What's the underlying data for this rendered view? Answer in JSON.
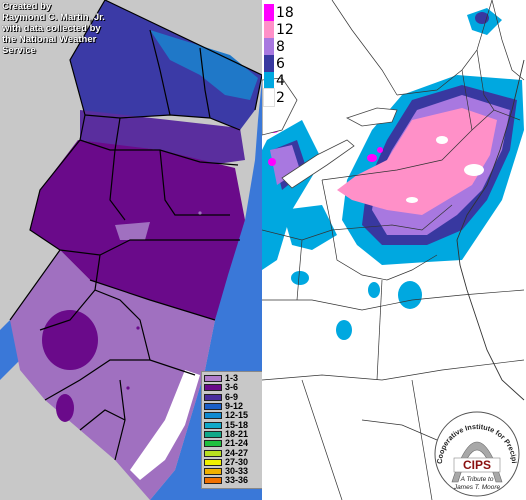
{
  "credit": {
    "line1": "Created by",
    "line2": "Raymond C. Martin, Jr.",
    "line3": "with data collected by",
    "line4": "the National Weather",
    "line5": "Service"
  },
  "nj_legend": [
    {
      "label": "1-3",
      "color": "#b07ccc"
    },
    {
      "label": "3-6",
      "color": "#6a0a8a"
    },
    {
      "label": "6-9",
      "color": "#4a2e9e"
    },
    {
      "label": "9-12",
      "color": "#1a5fc8"
    },
    {
      "label": "12-15",
      "color": "#0f8ad0"
    },
    {
      "label": "15-18",
      "color": "#10a8c8"
    },
    {
      "label": "18-21",
      "color": "#10a888"
    },
    {
      "label": "21-24",
      "color": "#20c040"
    },
    {
      "label": "24-27",
      "color": "#b8e020"
    },
    {
      "label": "27-30",
      "color": "#f0f000"
    },
    {
      "label": "30-33",
      "color": "#f0b000"
    },
    {
      "label": "33-36",
      "color": "#f07000"
    }
  ],
  "us_legend": [
    {
      "label": "18",
      "color": "#ff00ff"
    },
    {
      "label": "12",
      "color": "#ff90c8"
    },
    {
      "label": "8",
      "color": "#a878e0"
    },
    {
      "label": "6",
      "color": "#3838a0"
    },
    {
      "label": "4",
      "color": "#00a8e0"
    },
    {
      "label": "2",
      "color": "#ffffff"
    }
  ],
  "cips": {
    "name": "CIPS",
    "arc_text": "Cooperative Institute for Precipitation Systems",
    "tribute_line1": "A Tribute to",
    "tribute_line2": "James T. Moore"
  },
  "colors": {
    "ocean_nj": "#3a78d8",
    "gray_bg": "#c8c8c8",
    "county_line": "#000000"
  }
}
